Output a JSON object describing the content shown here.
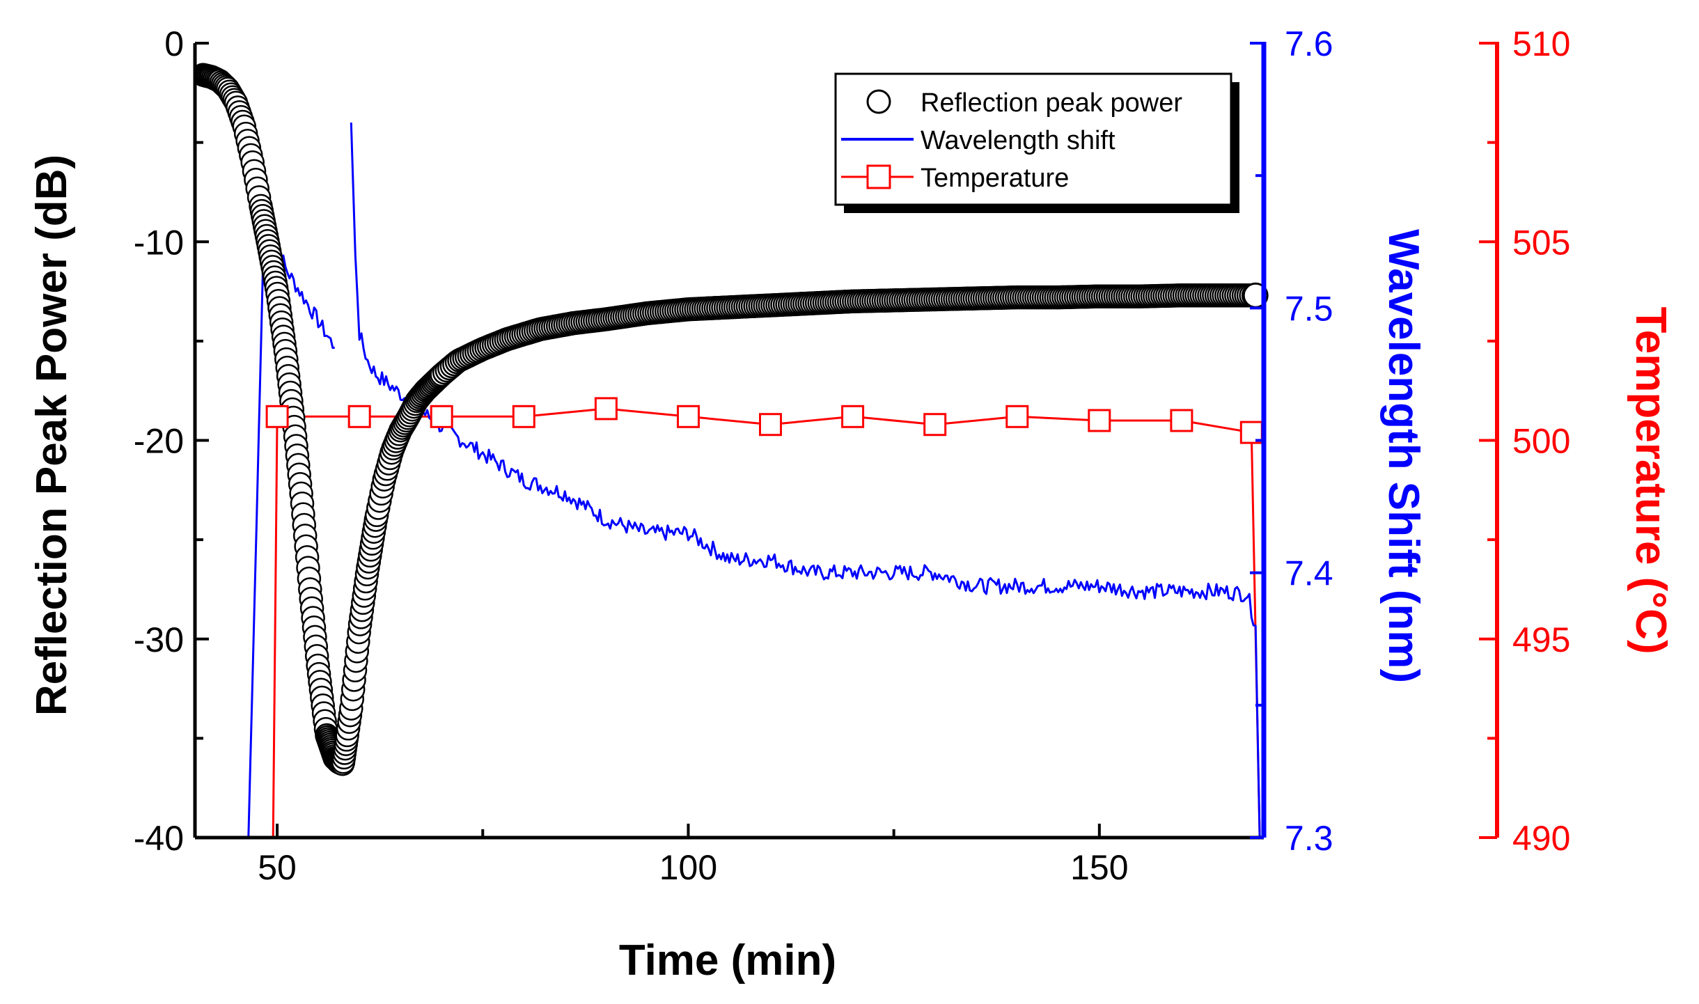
{
  "chart_data": {
    "type": "line",
    "title": "",
    "xlabel": "Time (min)",
    "xlim": [
      40,
      170
    ],
    "xticks": [
      50,
      100,
      150
    ],
    "axes": {
      "left": {
        "label": "Reflection Peak Power (dB)",
        "range": [
          -40,
          0
        ],
        "ticks": [
          0,
          -10,
          -20,
          -30,
          -40
        ],
        "color": "#000000"
      },
      "right1": {
        "label": "Wavelength Shift (nm)",
        "range": [
          7.3,
          7.6
        ],
        "ticks": [
          7.3,
          7.4,
          7.5,
          7.6
        ],
        "color": "#0000ff"
      },
      "right2": {
        "label": "Temperature (°C)",
        "range": [
          490,
          510
        ],
        "ticks": [
          490,
          495,
          500,
          505,
          510
        ],
        "color": "#ff0000"
      }
    },
    "legend": {
      "position": "top-right",
      "entries": [
        "Reflection peak power",
        "Wavelength shift",
        "Temperature"
      ]
    },
    "series": [
      {
        "name": "Reflection peak power",
        "axis": "left",
        "style": "open-circle",
        "color": "#000000",
        "x": [
          41,
          42,
          43,
          44,
          45,
          46,
          47,
          48,
          49,
          50,
          51,
          52,
          53,
          54,
          55,
          56,
          57,
          57.5,
          58,
          59,
          60,
          61,
          62,
          63,
          64,
          65,
          66,
          67,
          68,
          70,
          72,
          75,
          78,
          82,
          86,
          90,
          95,
          100,
          105,
          110,
          115,
          120,
          125,
          130,
          135,
          140,
          145,
          150,
          155,
          160,
          165,
          169
        ],
        "y": [
          -1.6,
          -1.7,
          -1.9,
          -2.3,
          -3.0,
          -4.2,
          -6.0,
          -8.2,
          -10.3,
          -12.5,
          -15.5,
          -19.0,
          -23.0,
          -27.5,
          -31.5,
          -34.8,
          -36.0,
          -36.2,
          -36.3,
          -33.5,
          -29.5,
          -26.5,
          -24.0,
          -22.0,
          -20.5,
          -19.5,
          -18.8,
          -18.0,
          -17.5,
          -16.7,
          -16.0,
          -15.4,
          -14.9,
          -14.4,
          -14.1,
          -13.9,
          -13.6,
          -13.4,
          -13.3,
          -13.2,
          -13.1,
          -13.0,
          -12.95,
          -12.9,
          -12.85,
          -12.8,
          -12.8,
          -12.75,
          -12.75,
          -12.7,
          -12.7,
          -12.7
        ]
      },
      {
        "name": "Wavelength shift",
        "axis": "right1",
        "style": "line",
        "color": "#0000ff",
        "segments": [
          {
            "x": [
              46.5,
              47.5,
              48.3,
              49.0,
              50.0,
              51.0,
              52.0,
              53.0,
              54.0,
              55.0,
              56.0,
              57.0
            ],
            "y": [
              7.3,
              7.42,
              7.52,
              7.535,
              7.525,
              7.515,
              7.51,
              7.505,
              7.5,
              7.495,
              7.49,
              7.485
            ]
          },
          {
            "x": [
              59.0,
              59.5,
              60.0,
              61.0,
              62.0,
              64.0,
              66.0,
              68.0,
              70.0,
              75.0,
              80.0,
              85.0,
              90.0,
              95.0,
              100.0,
              105.0,
              110.0,
              115.0,
              120.0,
              125.0,
              130.0,
              135.0,
              140.0,
              145.0,
              150.0,
              155.0,
              160.0,
              165.0,
              168.0,
              169.0,
              169.5
            ],
            "y": [
              7.57,
              7.52,
              7.49,
              7.48,
              7.475,
              7.47,
              7.465,
              7.46,
              7.455,
              7.445,
              7.435,
              7.43,
              7.42,
              7.415,
              7.415,
              7.405,
              7.405,
              7.4,
              7.4,
              7.4,
              7.4,
              7.395,
              7.395,
              7.395,
              7.395,
              7.393,
              7.393,
              7.393,
              7.392,
              7.38,
              7.3
            ]
          }
        ]
      },
      {
        "name": "Temperature",
        "axis": "right2",
        "style": "line-open-square",
        "color": "#ff0000",
        "x": [
          49.5,
          50,
          60,
          70,
          80,
          90,
          100,
          110,
          120,
          130,
          140,
          150,
          160,
          168.5,
          169.5
        ],
        "y": [
          490,
          500.6,
          500.6,
          500.6,
          500.6,
          500.8,
          500.6,
          500.4,
          500.6,
          500.4,
          500.6,
          500.5,
          500.5,
          500.2,
          490
        ],
        "marker_x": [
          50,
          60,
          70,
          80,
          90,
          100,
          110,
          120,
          130,
          140,
          150,
          160,
          168.5
        ],
        "marker_y": [
          500.6,
          500.6,
          500.6,
          500.6,
          500.8,
          500.6,
          500.4,
          500.6,
          500.4,
          500.6,
          500.5,
          500.5,
          500.2
        ]
      }
    ]
  }
}
